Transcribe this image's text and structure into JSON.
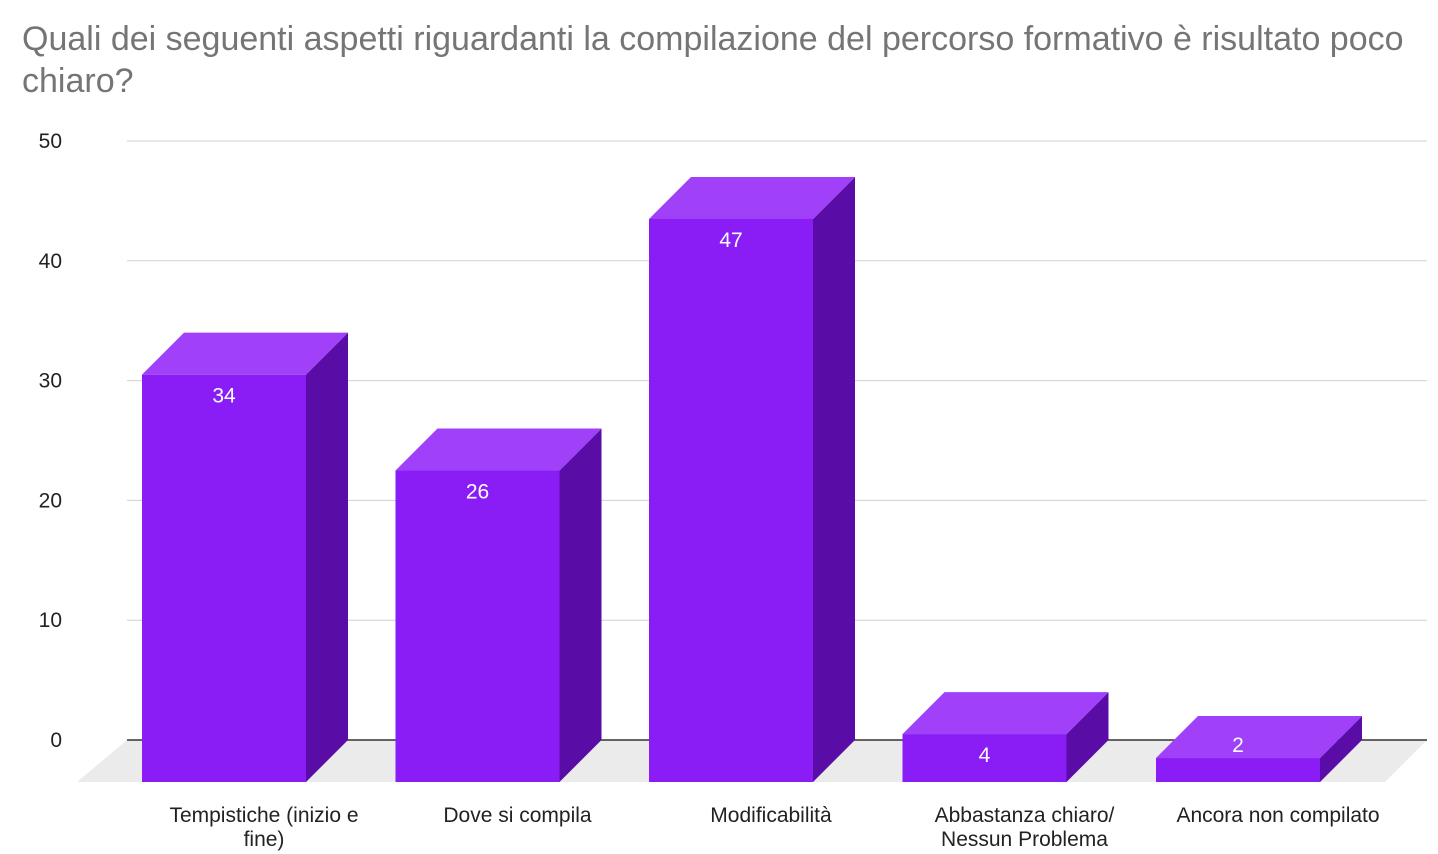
{
  "chart_data": {
    "type": "bar",
    "title": "Quali dei seguenti aspetti riguardanti la compilazione del percorso formativo è risultato poco chiaro?",
    "categories": [
      [
        "Tempistiche (inizio e",
        "fine)"
      ],
      [
        "Dove si compila"
      ],
      [
        "Modificabilità"
      ],
      [
        "Abbastanza chiaro/",
        "Nessun Problema"
      ],
      [
        "Ancora non compilato"
      ]
    ],
    "values": [
      34,
      26,
      47,
      4,
      2
    ],
    "ylim": [
      0,
      50
    ],
    "yticks": [
      0,
      10,
      20,
      30,
      40,
      50
    ],
    "grid": true,
    "legend": "none",
    "style": "3d",
    "colors": {
      "front": "#8a1df5",
      "top": "#a040f8",
      "side": "#5a0da6",
      "floor": "#ebebeb",
      "grid": "#d0d0d0",
      "axis": "#333333"
    }
  }
}
